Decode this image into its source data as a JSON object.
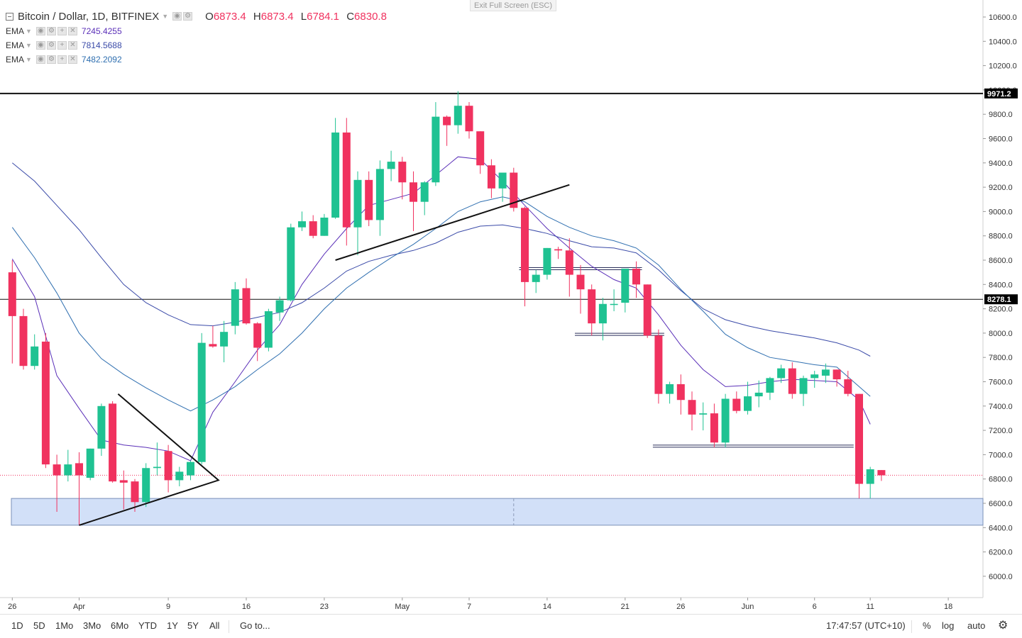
{
  "header": {
    "symbol": "Bitcoin / Dollar, 1D, BITFINEX",
    "open_label": "O",
    "open": "6873.4",
    "high_label": "H",
    "high": "6873.4",
    "low_label": "L",
    "low": "6784.1",
    "close_label": "C",
    "close": "6830.8",
    "exit_fullscreen": "Exit Full Screen (ESC)"
  },
  "indicators": [
    {
      "name": "EMA",
      "value": "7245.4255",
      "color": "#5a2fb8"
    },
    {
      "name": "EMA",
      "value": "7814.5688",
      "color": "#3a4aa8"
    },
    {
      "name": "EMA",
      "value": "7482.2092",
      "color": "#2f6fb0"
    }
  ],
  "bottom_bar": {
    "ranges": [
      "1D",
      "5D",
      "1Mo",
      "3Mo",
      "6Mo",
      "YTD",
      "1Y",
      "5Y",
      "All"
    ],
    "goto": "Go to...",
    "time": "17:47:57 (UTC+10)",
    "percent": "%",
    "log": "log",
    "auto": "auto"
  },
  "chart_data": {
    "type": "candlestick",
    "title": "Bitcoin / Dollar, 1D, BITFINEX",
    "ylim": [
      5800,
      10800
    ],
    "y_ticks": [
      "10600.0",
      "10400.0",
      "10200.0",
      "10000.0",
      "9800.0",
      "9600.0",
      "9400.0",
      "9200.0",
      "9000.0",
      "8800.0",
      "8600.0",
      "8400.0",
      "8200.0",
      "8000.0",
      "7800.0",
      "7600.0",
      "7400.0",
      "7200.0",
      "7000.0",
      "6800.0",
      "6600.0",
      "6400.0",
      "6200.0",
      "6000.0"
    ],
    "x_ticks": [
      {
        "label": "26",
        "day": -6
      },
      {
        "label": "Apr",
        "day": 0
      },
      {
        "label": "9",
        "day": 8
      },
      {
        "label": "16",
        "day": 15
      },
      {
        "label": "23",
        "day": 22
      },
      {
        "label": "May",
        "day": 29
      },
      {
        "label": "7",
        "day": 35
      },
      {
        "label": "14",
        "day": 42
      },
      {
        "label": "21",
        "day": 49
      },
      {
        "label": "26",
        "day": 54
      },
      {
        "label": "Jun",
        "day": 60
      },
      {
        "label": "6",
        "day": 66
      },
      {
        "label": "11",
        "day": 71
      },
      {
        "label": "18",
        "day": 78
      }
    ],
    "candles": [
      {
        "day": -6,
        "o": 8500,
        "h": 8600,
        "l": 7750,
        "c": 8140
      },
      {
        "day": -5,
        "o": 8140,
        "h": 8200,
        "l": 7700,
        "c": 7730
      },
      {
        "day": -4,
        "o": 7730,
        "h": 7990,
        "l": 7700,
        "c": 7890
      },
      {
        "day": -3,
        "o": 7930,
        "h": 8000,
        "l": 6890,
        "c": 6920
      },
      {
        "day": -2,
        "o": 6920,
        "h": 7000,
        "l": 6530,
        "c": 6830
      },
      {
        "day": -1,
        "o": 6830,
        "h": 7040,
        "l": 6780,
        "c": 6920
      },
      {
        "day": 0,
        "o": 6930,
        "h": 7020,
        "l": 6420,
        "c": 6830
      },
      {
        "day": 1,
        "o": 6810,
        "h": 7050,
        "l": 6790,
        "c": 7050
      },
      {
        "day": 2,
        "o": 7050,
        "h": 7420,
        "l": 6990,
        "c": 7400
      },
      {
        "day": 3,
        "o": 7420,
        "h": 7440,
        "l": 6770,
        "c": 6780
      },
      {
        "day": 4,
        "o": 6790,
        "h": 6870,
        "l": 6550,
        "c": 6770
      },
      {
        "day": 5,
        "o": 6780,
        "h": 6800,
        "l": 6530,
        "c": 6610
      },
      {
        "day": 6,
        "o": 6610,
        "h": 6930,
        "l": 6570,
        "c": 6890
      },
      {
        "day": 7,
        "o": 6890,
        "h": 7100,
        "l": 6830,
        "c": 6900
      },
      {
        "day": 8,
        "o": 7030,
        "h": 7080,
        "l": 6690,
        "c": 6790
      },
      {
        "day": 9,
        "o": 6790,
        "h": 6900,
        "l": 6740,
        "c": 6860
      },
      {
        "day": 10,
        "o": 6830,
        "h": 6950,
        "l": 6790,
        "c": 6940
      },
      {
        "day": 11,
        "o": 6940,
        "h": 8000,
        "l": 6920,
        "c": 7920
      },
      {
        "day": 12,
        "o": 7910,
        "h": 8060,
        "l": 7880,
        "c": 7890
      },
      {
        "day": 13,
        "o": 7890,
        "h": 8100,
        "l": 7760,
        "c": 8010
      },
      {
        "day": 14,
        "o": 8060,
        "h": 8420,
        "l": 7990,
        "c": 8360
      },
      {
        "day": 15,
        "o": 8370,
        "h": 8450,
        "l": 8070,
        "c": 8080
      },
      {
        "day": 16,
        "o": 8080,
        "h": 8090,
        "l": 7770,
        "c": 7880
      },
      {
        "day": 17,
        "o": 7880,
        "h": 8200,
        "l": 7850,
        "c": 8180
      },
      {
        "day": 18,
        "o": 8170,
        "h": 8300,
        "l": 8100,
        "c": 8270
      },
      {
        "day": 19,
        "o": 8270,
        "h": 8900,
        "l": 8260,
        "c": 8870
      },
      {
        "day": 20,
        "o": 8870,
        "h": 9000,
        "l": 8840,
        "c": 8920
      },
      {
        "day": 21,
        "o": 8920,
        "h": 8970,
        "l": 8780,
        "c": 8800
      },
      {
        "day": 22,
        "o": 8800,
        "h": 8980,
        "l": 8800,
        "c": 8950
      },
      {
        "day": 23,
        "o": 8950,
        "h": 9770,
        "l": 8940,
        "c": 9650
      },
      {
        "day": 24,
        "o": 9650,
        "h": 9770,
        "l": 8720,
        "c": 8870
      },
      {
        "day": 25,
        "o": 8870,
        "h": 9330,
        "l": 8640,
        "c": 9260
      },
      {
        "day": 26,
        "o": 9260,
        "h": 9330,
        "l": 8880,
        "c": 8930
      },
      {
        "day": 27,
        "o": 8930,
        "h": 9420,
        "l": 8800,
        "c": 9350
      },
      {
        "day": 28,
        "o": 9350,
        "h": 9500,
        "l": 9250,
        "c": 9410
      },
      {
        "day": 29,
        "o": 9410,
        "h": 9450,
        "l": 9100,
        "c": 9240
      },
      {
        "day": 30,
        "o": 9240,
        "h": 9330,
        "l": 8840,
        "c": 9080
      },
      {
        "day": 31,
        "o": 9080,
        "h": 9250,
        "l": 8970,
        "c": 9240
      },
      {
        "day": 32,
        "o": 9240,
        "h": 9900,
        "l": 9210,
        "c": 9780
      },
      {
        "day": 33,
        "o": 9780,
        "h": 9790,
        "l": 9540,
        "c": 9710
      },
      {
        "day": 34,
        "o": 9710,
        "h": 9990,
        "l": 9640,
        "c": 9870
      },
      {
        "day": 35,
        "o": 9870,
        "h": 9900,
        "l": 9600,
        "c": 9660
      },
      {
        "day": 36,
        "o": 9660,
        "h": 9660,
        "l": 9310,
        "c": 9380
      },
      {
        "day": 37,
        "o": 9380,
        "h": 9430,
        "l": 9110,
        "c": 9190
      },
      {
        "day": 38,
        "o": 9190,
        "h": 9310,
        "l": 9080,
        "c": 9320
      },
      {
        "day": 39,
        "o": 9320,
        "h": 9360,
        "l": 9000,
        "c": 9030
      },
      {
        "day": 40,
        "o": 9030,
        "h": 9040,
        "l": 8220,
        "c": 8420
      },
      {
        "day": 41,
        "o": 8420,
        "h": 8520,
        "l": 8330,
        "c": 8480
      },
      {
        "day": 42,
        "o": 8480,
        "h": 8700,
        "l": 8440,
        "c": 8700
      },
      {
        "day": 43,
        "o": 8690,
        "h": 8710,
        "l": 8610,
        "c": 8680
      },
      {
        "day": 44,
        "o": 8680,
        "h": 8780,
        "l": 8300,
        "c": 8480
      },
      {
        "day": 45,
        "o": 8480,
        "h": 8560,
        "l": 8160,
        "c": 8360
      },
      {
        "day": 46,
        "o": 8360,
        "h": 8400,
        "l": 7980,
        "c": 8080
      },
      {
        "day": 47,
        "o": 8080,
        "h": 8290,
        "l": 7940,
        "c": 8240
      },
      {
        "day": 48,
        "o": 8240,
        "h": 8360,
        "l": 8180,
        "c": 8240
      },
      {
        "day": 49,
        "o": 8250,
        "h": 8530,
        "l": 8170,
        "c": 8530
      },
      {
        "day": 50,
        "o": 8530,
        "h": 8590,
        "l": 8290,
        "c": 8400
      },
      {
        "day": 51,
        "o": 8400,
        "h": 8400,
        "l": 7960,
        "c": 7980
      },
      {
        "day": 52,
        "o": 7980,
        "h": 8030,
        "l": 7420,
        "c": 7500
      },
      {
        "day": 53,
        "o": 7500,
        "h": 7600,
        "l": 7420,
        "c": 7580
      },
      {
        "day": 54,
        "o": 7580,
        "h": 7660,
        "l": 7330,
        "c": 7450
      },
      {
        "day": 55,
        "o": 7450,
        "h": 7520,
        "l": 7200,
        "c": 7330
      },
      {
        "day": 56,
        "o": 7330,
        "h": 7430,
        "l": 7200,
        "c": 7340
      },
      {
        "day": 57,
        "o": 7340,
        "h": 7420,
        "l": 7060,
        "c": 7100
      },
      {
        "day": 58,
        "o": 7100,
        "h": 7500,
        "l": 7060,
        "c": 7460
      },
      {
        "day": 59,
        "o": 7460,
        "h": 7520,
        "l": 7340,
        "c": 7360
      },
      {
        "day": 60,
        "o": 7360,
        "h": 7600,
        "l": 7330,
        "c": 7480
      },
      {
        "day": 61,
        "o": 7480,
        "h": 7610,
        "l": 7390,
        "c": 7510
      },
      {
        "day": 62,
        "o": 7510,
        "h": 7640,
        "l": 7450,
        "c": 7630
      },
      {
        "day": 63,
        "o": 7630,
        "h": 7740,
        "l": 7590,
        "c": 7710
      },
      {
        "day": 64,
        "o": 7710,
        "h": 7760,
        "l": 7460,
        "c": 7500
      },
      {
        "day": 65,
        "o": 7500,
        "h": 7650,
        "l": 7400,
        "c": 7630
      },
      {
        "day": 66,
        "o": 7630,
        "h": 7690,
        "l": 7550,
        "c": 7660
      },
      {
        "day": 67,
        "o": 7650,
        "h": 7750,
        "l": 7590,
        "c": 7700
      },
      {
        "day": 68,
        "o": 7700,
        "h": 7700,
        "l": 7560,
        "c": 7620
      },
      {
        "day": 69,
        "o": 7620,
        "h": 7690,
        "l": 7480,
        "c": 7500
      },
      {
        "day": 70,
        "o": 7500,
        "h": 7500,
        "l": 6640,
        "c": 6760
      },
      {
        "day": 71,
        "o": 6760,
        "h": 6900,
        "l": 6640,
        "c": 6880
      },
      {
        "day": 72,
        "o": 6873.4,
        "h": 6873.4,
        "l": 6784.1,
        "c": 6830.8
      }
    ],
    "ema_series": [
      {
        "name": "EMA",
        "color": "#5a2fb8",
        "points": [
          [
            -6,
            8610
          ],
          [
            -4,
            8300
          ],
          [
            -2,
            7650
          ],
          [
            0,
            7380
          ],
          [
            2,
            7120
          ],
          [
            4,
            7080
          ],
          [
            6,
            7060
          ],
          [
            8,
            7030
          ],
          [
            10,
            6950
          ],
          [
            12,
            7350
          ],
          [
            14,
            7600
          ],
          [
            16,
            7860
          ],
          [
            18,
            8070
          ],
          [
            20,
            8400
          ],
          [
            22,
            8650
          ],
          [
            24,
            8860
          ],
          [
            26,
            9050
          ],
          [
            28,
            9100
          ],
          [
            30,
            9150
          ],
          [
            32,
            9300
          ],
          [
            34,
            9450
          ],
          [
            36,
            9430
          ],
          [
            38,
            9250
          ],
          [
            40,
            9050
          ],
          [
            42,
            8860
          ],
          [
            44,
            8700
          ],
          [
            46,
            8550
          ],
          [
            48,
            8440
          ],
          [
            50,
            8370
          ],
          [
            52,
            8150
          ],
          [
            54,
            7900
          ],
          [
            56,
            7700
          ],
          [
            58,
            7560
          ],
          [
            60,
            7570
          ],
          [
            62,
            7600
          ],
          [
            64,
            7620
          ],
          [
            66,
            7610
          ],
          [
            68,
            7600
          ],
          [
            70,
            7450
          ],
          [
            71,
            7250
          ]
        ]
      },
      {
        "name": "EMA",
        "color": "#3a4aa8",
        "points": [
          [
            -6,
            9400
          ],
          [
            -4,
            9250
          ],
          [
            -2,
            9050
          ],
          [
            0,
            8850
          ],
          [
            2,
            8620
          ],
          [
            4,
            8400
          ],
          [
            6,
            8250
          ],
          [
            8,
            8150
          ],
          [
            10,
            8070
          ],
          [
            12,
            8060
          ],
          [
            14,
            8090
          ],
          [
            16,
            8130
          ],
          [
            18,
            8170
          ],
          [
            20,
            8250
          ],
          [
            22,
            8370
          ],
          [
            24,
            8510
          ],
          [
            26,
            8590
          ],
          [
            28,
            8640
          ],
          [
            30,
            8680
          ],
          [
            32,
            8740
          ],
          [
            34,
            8830
          ],
          [
            36,
            8880
          ],
          [
            38,
            8890
          ],
          [
            40,
            8860
          ],
          [
            42,
            8820
          ],
          [
            44,
            8760
          ],
          [
            46,
            8710
          ],
          [
            48,
            8700
          ],
          [
            50,
            8660
          ],
          [
            52,
            8520
          ],
          [
            54,
            8350
          ],
          [
            56,
            8200
          ],
          [
            58,
            8110
          ],
          [
            60,
            8060
          ],
          [
            62,
            8020
          ],
          [
            64,
            7990
          ],
          [
            66,
            7960
          ],
          [
            68,
            7920
          ],
          [
            70,
            7860
          ],
          [
            71,
            7810
          ]
        ]
      },
      {
        "name": "EMA",
        "color": "#2f6fb0",
        "points": [
          [
            -6,
            8870
          ],
          [
            -4,
            8620
          ],
          [
            -2,
            8330
          ],
          [
            0,
            8000
          ],
          [
            2,
            7790
          ],
          [
            4,
            7660
          ],
          [
            6,
            7550
          ],
          [
            8,
            7450
          ],
          [
            10,
            7360
          ],
          [
            12,
            7450
          ],
          [
            14,
            7560
          ],
          [
            16,
            7700
          ],
          [
            18,
            7830
          ],
          [
            20,
            8000
          ],
          [
            22,
            8200
          ],
          [
            24,
            8370
          ],
          [
            26,
            8500
          ],
          [
            28,
            8620
          ],
          [
            30,
            8730
          ],
          [
            32,
            8860
          ],
          [
            34,
            9000
          ],
          [
            36,
            9080
          ],
          [
            38,
            9120
          ],
          [
            40,
            9080
          ],
          [
            42,
            8960
          ],
          [
            44,
            8870
          ],
          [
            46,
            8800
          ],
          [
            48,
            8760
          ],
          [
            50,
            8700
          ],
          [
            52,
            8560
          ],
          [
            54,
            8360
          ],
          [
            56,
            8180
          ],
          [
            58,
            7990
          ],
          [
            60,
            7880
          ],
          [
            62,
            7800
          ],
          [
            64,
            7770
          ],
          [
            66,
            7740
          ],
          [
            68,
            7720
          ],
          [
            70,
            7560
          ],
          [
            71,
            7480
          ]
        ]
      }
    ],
    "horizontal_lines": [
      {
        "price": 9971.2,
        "label": "9971.2",
        "style": "thick"
      },
      {
        "price": 8278.1,
        "label": "8278.1",
        "style": "thin"
      },
      {
        "price": 6830.8,
        "label": "",
        "style": "dotted"
      }
    ],
    "support_zone": {
      "from_day": -5,
      "to_day": 85,
      "low": 6420,
      "high": 6640
    },
    "trend_lines": [
      {
        "points": [
          [
            0,
            6420
          ],
          [
            12.5,
            6790
          ],
          [
            3.5,
            7500
          ]
        ]
      },
      {
        "points": [
          [
            23,
            8600
          ],
          [
            44,
            9220
          ]
        ]
      }
    ],
    "level_markers": [
      {
        "from_day": 40,
        "to_day": 50,
        "price": 8530
      },
      {
        "from_day": 45,
        "to_day": 52,
        "price": 7990
      },
      {
        "from_day": 52,
        "to_day": 69,
        "price": 7070
      }
    ],
    "up_color": "#1fc292",
    "down_color": "#f0325f"
  }
}
